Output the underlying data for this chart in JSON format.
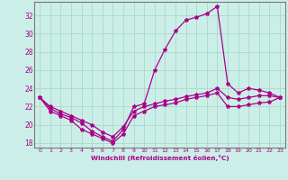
{
  "xlabel": "Windchill (Refroidissement éolien,°C)",
  "bg_color": "#cceee8",
  "line_color": "#aa0088",
  "grid_color": "#aaddcc",
  "hours": [
    0,
    1,
    2,
    3,
    4,
    5,
    6,
    7,
    8,
    9,
    10,
    11,
    12,
    13,
    14,
    15,
    16,
    17,
    18,
    19,
    20,
    21,
    22,
    23
  ],
  "temp": [
    23.0,
    21.8,
    21.2,
    20.8,
    20.2,
    19.3,
    18.7,
    18.2,
    19.5,
    22.0,
    22.3,
    26.0,
    28.3,
    30.3,
    31.5,
    31.8,
    32.2,
    33.0,
    24.5,
    23.5,
    24.0,
    23.8,
    23.5,
    23.0
  ],
  "windchill": [
    23.0,
    21.5,
    21.0,
    20.5,
    19.5,
    19.0,
    18.5,
    18.0,
    19.0,
    21.0,
    21.5,
    22.0,
    22.2,
    22.4,
    22.8,
    23.0,
    23.2,
    23.5,
    22.0,
    22.0,
    22.2,
    22.4,
    22.5,
    23.0
  ],
  "apparent": [
    23.0,
    22.0,
    21.5,
    21.0,
    20.5,
    20.0,
    19.2,
    18.7,
    19.8,
    21.5,
    22.0,
    22.3,
    22.6,
    22.8,
    23.1,
    23.3,
    23.5,
    24.0,
    23.0,
    22.8,
    23.0,
    23.2,
    23.2,
    23.0
  ],
  "ylim": [
    17.5,
    33.5
  ],
  "xlim": [
    -0.5,
    23.5
  ],
  "yticks": [
    18,
    20,
    22,
    24,
    26,
    28,
    30,
    32
  ],
  "xticks": [
    0,
    1,
    2,
    3,
    4,
    5,
    6,
    7,
    8,
    9,
    10,
    11,
    12,
    13,
    14,
    15,
    16,
    17,
    18,
    19,
    20,
    21,
    22,
    23
  ]
}
